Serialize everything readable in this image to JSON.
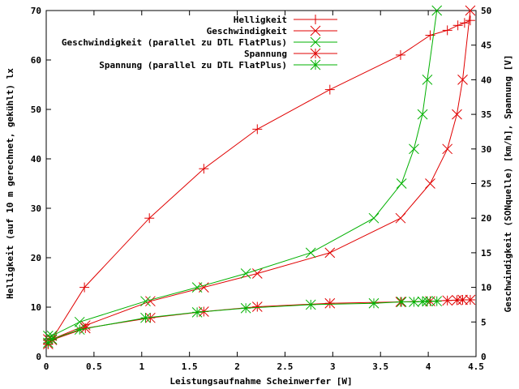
{
  "chart_data": {
    "type": "line",
    "xlabel": "Leistungsaufnahme Scheinwerfer [W]",
    "ylabel": "Helligkeit (auf 10 m gerechnet, gekühlt) lx",
    "y2label": "Geschwindigkeit (SONquelle) [km/h], Spannung [V]",
    "xlim": [
      0,
      4.5
    ],
    "ylim": [
      0,
      70
    ],
    "y2lim": [
      0,
      50
    ],
    "grid": false,
    "legend_position": "top-right",
    "x_ticks": [
      "0",
      "0.5",
      "1",
      "1.5",
      "2",
      "2.5",
      "3",
      "3.5",
      "4",
      "4.5"
    ],
    "y_ticks": [
      "0",
      "10",
      "20",
      "30",
      "40",
      "50",
      "60",
      "70"
    ],
    "y2_ticks": [
      "0",
      "5",
      "10",
      "15",
      "20",
      "25",
      "30",
      "35",
      "40",
      "45",
      "50"
    ],
    "series": [
      {
        "name": "Helligkeit",
        "axis": "y1",
        "color": "#e00000",
        "marker": "plus",
        "x": [
          0.02,
          0.06,
          0.4,
          1.08,
          1.65,
          2.21,
          2.97,
          3.71,
          4.02,
          4.2,
          4.31,
          4.38,
          4.44
        ],
        "y": [
          2.5,
          3.5,
          14,
          28,
          38,
          46,
          54,
          61,
          65,
          66,
          67,
          67.5,
          68
        ]
      },
      {
        "name": "Geschwindigkeit",
        "axis": "y2",
        "color": "#e00000",
        "marker": "x",
        "x": [
          0.02,
          0.06,
          0.41,
          1.09,
          1.65,
          2.21,
          2.97,
          3.71,
          4.02,
          4.2,
          4.3,
          4.36,
          4.44
        ],
        "y": [
          2.5,
          2.5,
          4.5,
          8,
          10,
          12,
          15,
          20,
          25,
          30,
          35,
          40,
          50
        ]
      },
      {
        "name": "Geschwindigkeit (parallel zu DTL FlatPlus)",
        "axis": "y2",
        "color": "#00b000",
        "marker": "x",
        "x": [
          0.02,
          0.06,
          0.35,
          1.04,
          1.58,
          2.09,
          2.77,
          3.43,
          3.72,
          3.85,
          3.94,
          3.99,
          4.09
        ],
        "y": [
          3,
          3,
          5,
          8,
          10,
          12,
          15,
          20,
          25,
          30,
          35,
          40,
          50
        ]
      },
      {
        "name": "Spannung",
        "axis": "y2",
        "color": "#e00000",
        "marker": "star",
        "x": [
          0.02,
          0.06,
          0.41,
          1.09,
          1.65,
          2.21,
          2.97,
          3.71,
          4.02,
          4.2,
          4.3,
          4.36,
          4.44
        ],
        "y": [
          1.8,
          2.4,
          4.1,
          5.6,
          6.5,
          7.2,
          7.7,
          7.9,
          8.0,
          8.1,
          8.15,
          8.2,
          8.2
        ]
      },
      {
        "name": "Spannung (parallel zu DTL FlatPlus)",
        "axis": "y2",
        "color": "#00b000",
        "marker": "star",
        "x": [
          0.02,
          0.06,
          0.35,
          1.04,
          1.58,
          2.09,
          2.77,
          3.43,
          3.72,
          3.85,
          3.94,
          3.99,
          4.09
        ],
        "y": [
          2.0,
          2.5,
          3.9,
          5.6,
          6.4,
          7.0,
          7.5,
          7.7,
          7.9,
          7.9,
          7.95,
          8.0,
          8.0
        ]
      }
    ]
  }
}
